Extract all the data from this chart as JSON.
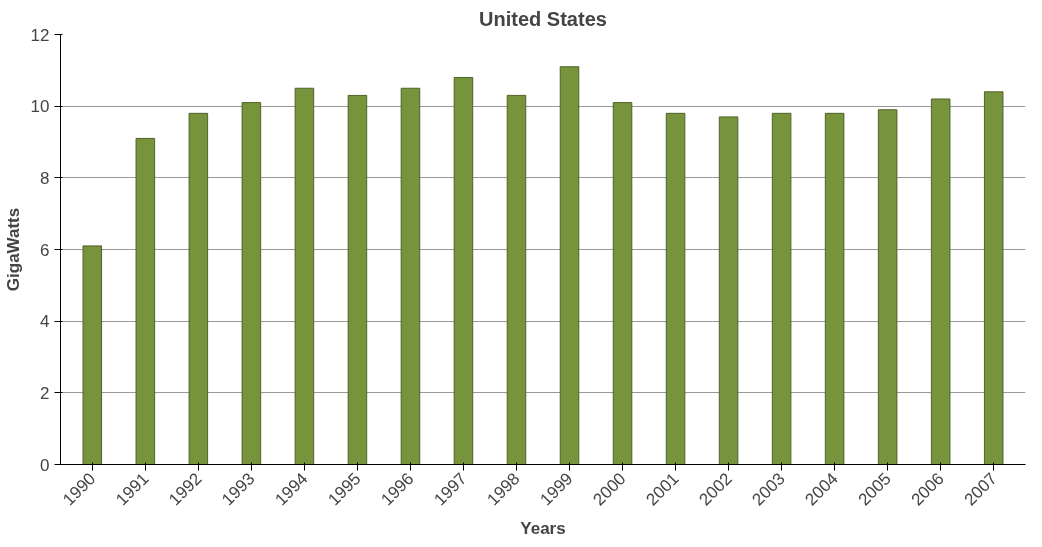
{
  "chart_data": {
    "type": "bar",
    "title": "United States",
    "xlabel": "Years",
    "ylabel": "GigaWatts",
    "categories": [
      "1990",
      "1991",
      "1992",
      "1993",
      "1994",
      "1995",
      "1996",
      "1997",
      "1998",
      "1999",
      "2000",
      "2001",
      "2002",
      "2003",
      "2004",
      "2005",
      "2006",
      "2007"
    ],
    "values": [
      6.1,
      9.1,
      9.8,
      10.1,
      10.5,
      10.3,
      10.5,
      10.8,
      10.3,
      11.1,
      10.1,
      9.8,
      9.7,
      9.8,
      9.8,
      9.9,
      10.2,
      10.4
    ],
    "color": "#77933c",
    "ylim": [
      0,
      12
    ],
    "yticks": [
      0,
      2,
      4,
      6,
      8,
      10,
      12
    ],
    "grid": "y"
  }
}
